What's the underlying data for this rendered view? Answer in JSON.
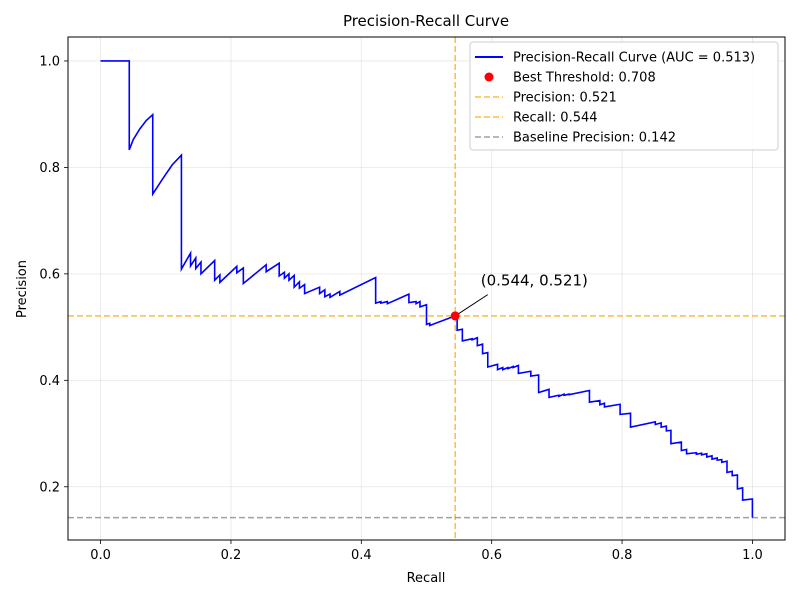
{
  "chart_data": {
    "type": "line",
    "title": "Precision-Recall Curve",
    "xlabel": "Recall",
    "ylabel": "Precision",
    "xlim": [
      -0.05,
      1.05
    ],
    "ylim": [
      0.1,
      1.045
    ],
    "xticks": [
      0.0,
      0.2,
      0.4,
      0.6,
      0.8,
      1.0
    ],
    "xtick_labels": [
      "0.0",
      "0.2",
      "0.4",
      "0.6",
      "0.8",
      "1.0"
    ],
    "yticks": [
      0.2,
      0.4,
      0.6,
      0.8,
      1.0
    ],
    "ytick_labels": [
      "0.2",
      "0.4",
      "0.6",
      "0.8",
      "1.0"
    ],
    "grid": true,
    "legend_position": "top-right",
    "legend": [
      {
        "label": "Precision-Recall Curve (AUC = 0.513)",
        "style": "line",
        "color": "#0000ff",
        "dashed": false
      },
      {
        "label": "Best Threshold: 0.708",
        "style": "marker",
        "color": "#ff0000",
        "dashed": false
      },
      {
        "label": "Precision: 0.521",
        "style": "line",
        "color": "#ffa500",
        "dashed": true
      },
      {
        "label": "Recall: 0.544",
        "style": "line",
        "color": "#ffa500",
        "dashed": true
      },
      {
        "label": "Baseline Precision: 0.142",
        "style": "line",
        "color": "#808080",
        "dashed": true
      }
    ],
    "series": [
      {
        "color": "#0000ff",
        "points": [
          [
            0.0,
            1.0
          ],
          [
            0.044,
            1.0
          ],
          [
            0.044,
            0.833
          ],
          [
            0.05,
            0.852
          ],
          [
            0.06,
            0.872
          ],
          [
            0.07,
            0.888
          ],
          [
            0.08,
            0.899
          ],
          [
            0.08,
            0.75
          ],
          [
            0.095,
            0.778
          ],
          [
            0.11,
            0.805
          ],
          [
            0.124,
            0.823
          ],
          [
            0.124,
            0.609
          ],
          [
            0.138,
            0.639
          ],
          [
            0.138,
            0.615
          ],
          [
            0.146,
            0.63
          ],
          [
            0.146,
            0.61
          ],
          [
            0.154,
            0.622
          ],
          [
            0.154,
            0.6
          ],
          [
            0.175,
            0.625
          ],
          [
            0.175,
            0.588
          ],
          [
            0.183,
            0.598
          ],
          [
            0.183,
            0.584
          ],
          [
            0.209,
            0.614
          ],
          [
            0.209,
            0.602
          ],
          [
            0.219,
            0.611
          ],
          [
            0.219,
            0.582
          ],
          [
            0.254,
            0.617
          ],
          [
            0.254,
            0.604
          ],
          [
            0.274,
            0.62
          ],
          [
            0.274,
            0.596
          ],
          [
            0.282,
            0.603
          ],
          [
            0.282,
            0.592
          ],
          [
            0.289,
            0.6
          ],
          [
            0.289,
            0.588
          ],
          [
            0.297,
            0.597
          ],
          [
            0.297,
            0.575
          ],
          [
            0.305,
            0.585
          ],
          [
            0.305,
            0.573
          ],
          [
            0.313,
            0.58
          ],
          [
            0.313,
            0.563
          ],
          [
            0.336,
            0.575
          ],
          [
            0.336,
            0.563
          ],
          [
            0.344,
            0.57
          ],
          [
            0.344,
            0.557
          ],
          [
            0.352,
            0.562
          ],
          [
            0.352,
            0.556
          ],
          [
            0.367,
            0.567
          ],
          [
            0.367,
            0.56
          ],
          [
            0.422,
            0.593
          ],
          [
            0.422,
            0.545
          ],
          [
            0.43,
            0.548
          ],
          [
            0.43,
            0.545
          ],
          [
            0.44,
            0.548
          ],
          [
            0.44,
            0.544
          ],
          [
            0.473,
            0.562
          ],
          [
            0.473,
            0.546
          ],
          [
            0.484,
            0.548
          ],
          [
            0.484,
            0.544
          ],
          [
            0.49,
            0.548
          ],
          [
            0.49,
            0.538
          ],
          [
            0.5,
            0.542
          ],
          [
            0.5,
            0.505
          ],
          [
            0.505,
            0.507
          ],
          [
            0.505,
            0.503
          ],
          [
            0.544,
            0.521
          ],
          [
            0.547,
            0.521
          ],
          [
            0.547,
            0.494
          ],
          [
            0.555,
            0.496
          ],
          [
            0.555,
            0.474
          ],
          [
            0.57,
            0.478
          ],
          [
            0.57,
            0.476
          ],
          [
            0.578,
            0.48
          ],
          [
            0.578,
            0.465
          ],
          [
            0.586,
            0.468
          ],
          [
            0.586,
            0.45
          ],
          [
            0.594,
            0.452
          ],
          [
            0.594,
            0.425
          ],
          [
            0.609,
            0.43
          ],
          [
            0.609,
            0.42
          ],
          [
            0.617,
            0.424
          ],
          [
            0.617,
            0.42
          ],
          [
            0.625,
            0.424
          ],
          [
            0.625,
            0.422
          ],
          [
            0.633,
            0.426
          ],
          [
            0.633,
            0.424
          ],
          [
            0.641,
            0.428
          ],
          [
            0.641,
            0.413
          ],
          [
            0.66,
            0.417
          ],
          [
            0.66,
            0.408
          ],
          [
            0.672,
            0.41
          ],
          [
            0.672,
            0.377
          ],
          [
            0.688,
            0.383
          ],
          [
            0.688,
            0.368
          ],
          [
            0.703,
            0.372
          ],
          [
            0.703,
            0.37
          ],
          [
            0.711,
            0.374
          ],
          [
            0.711,
            0.372
          ],
          [
            0.719,
            0.374
          ],
          [
            0.719,
            0.373
          ],
          [
            0.75,
            0.381
          ],
          [
            0.75,
            0.359
          ],
          [
            0.766,
            0.362
          ],
          [
            0.766,
            0.354
          ],
          [
            0.773,
            0.357
          ],
          [
            0.773,
            0.35
          ],
          [
            0.797,
            0.355
          ],
          [
            0.797,
            0.336
          ],
          [
            0.813,
            0.338
          ],
          [
            0.813,
            0.312
          ],
          [
            0.851,
            0.322
          ],
          [
            0.851,
            0.317
          ],
          [
            0.86,
            0.32
          ],
          [
            0.86,
            0.312
          ],
          [
            0.868,
            0.314
          ],
          [
            0.868,
            0.305
          ],
          [
            0.875,
            0.306
          ],
          [
            0.875,
            0.281
          ],
          [
            0.891,
            0.284
          ],
          [
            0.891,
            0.268
          ],
          [
            0.899,
            0.27
          ],
          [
            0.899,
            0.262
          ],
          [
            0.914,
            0.264
          ],
          [
            0.914,
            0.261
          ],
          [
            0.922,
            0.263
          ],
          [
            0.922,
            0.26
          ],
          [
            0.93,
            0.262
          ],
          [
            0.93,
            0.256
          ],
          [
            0.938,
            0.258
          ],
          [
            0.938,
            0.252
          ],
          [
            0.946,
            0.254
          ],
          [
            0.946,
            0.25
          ],
          [
            0.953,
            0.251
          ],
          [
            0.953,
            0.246
          ],
          [
            0.961,
            0.248
          ],
          [
            0.961,
            0.227
          ],
          [
            0.969,
            0.229
          ],
          [
            0.969,
            0.221
          ],
          [
            0.977,
            0.222
          ],
          [
            0.977,
            0.196
          ],
          [
            0.985,
            0.198
          ],
          [
            0.985,
            0.175
          ],
          [
            1.0,
            0.177
          ],
          [
            1.0,
            0.142
          ]
        ]
      }
    ],
    "best_point": {
      "x": 0.544,
      "y": 0.521,
      "color": "#ff0000"
    },
    "reference_lines": [
      {
        "orientation": "horizontal",
        "value": 0.521,
        "color": "#ffa500"
      },
      {
        "orientation": "vertical",
        "value": 0.544,
        "color": "#ffa500"
      },
      {
        "orientation": "horizontal",
        "value": 0.142,
        "color": "#808080"
      }
    ],
    "annotation": {
      "text": "(0.544, 0.521)",
      "x": 0.544,
      "y": 0.521,
      "text_x": 0.594,
      "text_y": 0.561
    }
  }
}
